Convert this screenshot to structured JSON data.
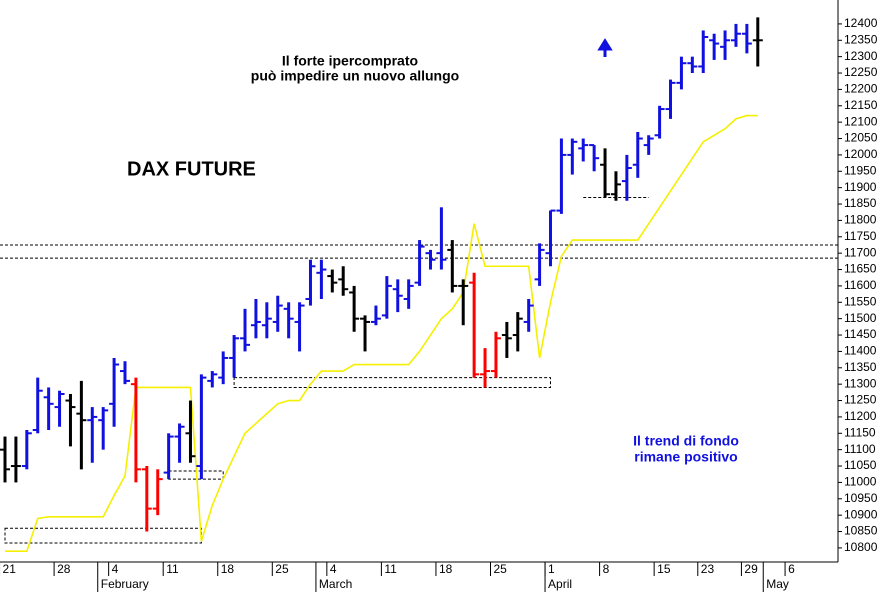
{
  "chart_data": {
    "type": "ohlc",
    "title": "DAX FUTURE",
    "annotations": [
      {
        "text": "Il forte ipercomprato",
        "color": "#000000"
      },
      {
        "text": "può impedire un nuovo allungo",
        "color": "#000000"
      },
      {
        "text": "Il trend di fondo",
        "color": "#1010e0"
      },
      {
        "text": "rimane positivo",
        "color": "#1010e0"
      }
    ],
    "categories": [
      "21",
      null,
      null,
      null,
      null,
      "28",
      null,
      null,
      null,
      null,
      "4",
      null,
      null,
      null,
      null,
      "11",
      null,
      null,
      null,
      null,
      "18",
      null,
      null,
      null,
      null,
      "25",
      null,
      null,
      null,
      null,
      "4",
      null,
      null,
      null,
      null,
      "11",
      null,
      null,
      null,
      null,
      "18",
      null,
      null,
      null,
      null,
      "25",
      null,
      null,
      null,
      null,
      "1",
      null,
      null,
      null,
      null,
      "8",
      null,
      null,
      null,
      null,
      "15",
      null,
      null,
      null,
      "23",
      null,
      null,
      null,
      "29",
      null,
      null,
      null,
      "6",
      null,
      null,
      null,
      null
    ],
    "months": [
      {
        "label": "February",
        "start": 9
      },
      {
        "label": "March",
        "start": 29
      },
      {
        "label": "April",
        "start": 50
      },
      {
        "label": "May",
        "start": 70
      }
    ],
    "open": [
      11100,
      11050,
      11050,
      11160,
      11260,
      11230,
      11250,
      11210,
      11190,
      11190,
      11240,
      11340,
      11300,
      11040,
      10920,
      11030,
      11140,
      11150,
      11050,
      11310,
      11320,
      11380,
      11440,
      11480,
      11480,
      11490,
      11530,
      11490,
      11560,
      11640,
      11630,
      11620,
      11580,
      11500,
      11490,
      11510,
      11590,
      11560,
      11610,
      11700,
      11700,
      11710,
      11600,
      11610,
      11330,
      11340,
      11450,
      11450,
      11490,
      11620,
      11700,
      11830,
      12000,
      12020,
      12030,
      11970,
      11880,
      11920,
      11970,
      12030,
      12060,
      12140,
      12220,
      12280,
      12270,
      12350,
      12330,
      12350,
      12370,
      12350,
      null,
      null,
      null,
      null,
      null,
      null,
      null
    ],
    "high": [
      11140,
      11140,
      11160,
      11320,
      11290,
      11280,
      11270,
      11310,
      11230,
      11230,
      11380,
      11370,
      11320,
      11050,
      11040,
      11150,
      11180,
      11250,
      11330,
      11340,
      11400,
      11450,
      11530,
      11560,
      11550,
      11570,
      11550,
      11550,
      11680,
      11680,
      11650,
      11660,
      11600,
      11510,
      11540,
      11630,
      11620,
      11620,
      11740,
      11710,
      11840,
      11740,
      11620,
      11640,
      11410,
      11460,
      11490,
      11520,
      11560,
      11730,
      11830,
      12050,
      12050,
      12050,
      12030,
      12020,
      11950,
      12000,
      12070,
      12060,
      12150,
      12230,
      12300,
      12300,
      12380,
      12370,
      12380,
      12400,
      12400,
      12420,
      null,
      null,
      null,
      null,
      null,
      null,
      null
    ],
    "low": [
      11000,
      11000,
      11040,
      11150,
      11160,
      11170,
      11110,
      11040,
      11060,
      11100,
      11170,
      11300,
      11000,
      10850,
      10900,
      11010,
      11060,
      11060,
      11010,
      11290,
      11300,
      11320,
      11400,
      11440,
      11440,
      11460,
      11440,
      11400,
      11540,
      11560,
      11580,
      11570,
      11460,
      11400,
      11480,
      11500,
      11520,
      11530,
      11600,
      11650,
      11650,
      11580,
      11480,
      11320,
      11290,
      11320,
      11380,
      11400,
      11460,
      11600,
      11660,
      11820,
      11940,
      11980,
      11950,
      11870,
      11860,
      11860,
      11930,
      12000,
      12050,
      12110,
      12200,
      12250,
      12250,
      12290,
      12290,
      12330,
      12310,
      12270,
      null,
      null,
      null,
      null,
      null,
      null,
      null
    ],
    "close": [
      11040,
      11050,
      11150,
      11280,
      11240,
      11270,
      11230,
      11190,
      11200,
      11220,
      11360,
      11310,
      11040,
      10920,
      11010,
      11140,
      11170,
      11080,
      11320,
      11330,
      11380,
      11440,
      11420,
      11490,
      11500,
      11540,
      11500,
      11540,
      11660,
      11650,
      11610,
      11590,
      11500,
      11490,
      11500,
      11600,
      11570,
      11600,
      11720,
      11680,
      11680,
      11600,
      11600,
      11330,
      11340,
      11440,
      11440,
      11500,
      11540,
      11710,
      11830,
      12000,
      12040,
      12030,
      11990,
      11880,
      11910,
      11960,
      12050,
      12050,
      12140,
      12220,
      12280,
      12270,
      12360,
      12340,
      12350,
      12370,
      12340,
      12350,
      null,
      null,
      null,
      null,
      null,
      null,
      null
    ],
    "bar_colors": [
      "#000000",
      "#000000",
      "#1010e0",
      "#1010e0",
      "#1010e0",
      "#1010e0",
      "#000000",
      "#000000",
      "#1010e0",
      "#1010e0",
      "#1010e0",
      "#1010e0",
      "#ff0000",
      "#ff0000",
      "#ff0000",
      "#1010e0",
      "#1010e0",
      "#000000",
      "#1010e0",
      "#1010e0",
      "#1010e0",
      "#1010e0",
      "#1010e0",
      "#1010e0",
      "#1010e0",
      "#1010e0",
      "#1010e0",
      "#1010e0",
      "#1010e0",
      "#1010e0",
      "#000000",
      "#000000",
      "#000000",
      "#000000",
      "#1010e0",
      "#1010e0",
      "#1010e0",
      "#1010e0",
      "#1010e0",
      "#1010e0",
      "#1010e0",
      "#000000",
      "#000000",
      "#ff0000",
      "#ff0000",
      "#ff0000",
      "#000000",
      "#000000",
      "#1010e0",
      "#1010e0",
      "#1010e0",
      "#1010e0",
      "#1010e0",
      "#1010e0",
      "#1010e0",
      "#000000",
      "#000000",
      "#1010e0",
      "#1010e0",
      "#1010e0",
      "#1010e0",
      "#1010e0",
      "#1010e0",
      "#1010e0",
      "#1010e0",
      "#1010e0",
      "#1010e0",
      "#1010e0",
      "#1010e0",
      "#000000",
      null,
      null,
      null,
      null,
      null,
      null,
      null
    ],
    "trend": {
      "color": "#f5f000",
      "values": [
        10790,
        10790,
        10790,
        10890,
        10895,
        10895,
        10895,
        10895,
        10895,
        10895,
        10960,
        11020,
        11290,
        11290,
        11290,
        11290,
        11290,
        11290,
        10820,
        10930,
        11010,
        11080,
        11150,
        11180,
        11210,
        11240,
        11250,
        11250,
        11300,
        11340,
        11340,
        11340,
        11360,
        11360,
        11360,
        11360,
        11360,
        11360,
        11400,
        11450,
        11500,
        11530,
        11580,
        11790,
        11660,
        11660,
        11660,
        11660,
        11660,
        11380,
        11550,
        11690,
        11740,
        11740,
        11740,
        11740,
        11740,
        11740,
        11740,
        11790,
        11840,
        11890,
        11940,
        11990,
        12040,
        12060,
        12080,
        12110,
        12120,
        12120,
        null,
        null,
        null,
        null,
        null,
        null,
        null
      ]
    },
    "ylim": [
      10757,
      12473
    ],
    "yticks": [
      10800,
      10850,
      10900,
      10950,
      11000,
      11050,
      11100,
      11150,
      11200,
      11250,
      11300,
      11350,
      11400,
      11450,
      11500,
      11550,
      11600,
      11650,
      11700,
      11750,
      11800,
      11850,
      11900,
      11950,
      12000,
      12050,
      12100,
      12150,
      12200,
      12250,
      12300,
      12350,
      12400
    ],
    "reference_lines": [
      11725,
      11685
    ],
    "reference_boxes": [
      {
        "from": 0,
        "to": 18,
        "low": 10815,
        "high": 10860
      },
      {
        "from": 15,
        "to": 20,
        "low": 11010,
        "high": 11035
      },
      {
        "from": 21,
        "to": 50,
        "low": 11290,
        "high": 11320
      },
      {
        "from": 53,
        "to": 59,
        "low": 11870,
        "high": 11870
      }
    ],
    "grid": false
  }
}
